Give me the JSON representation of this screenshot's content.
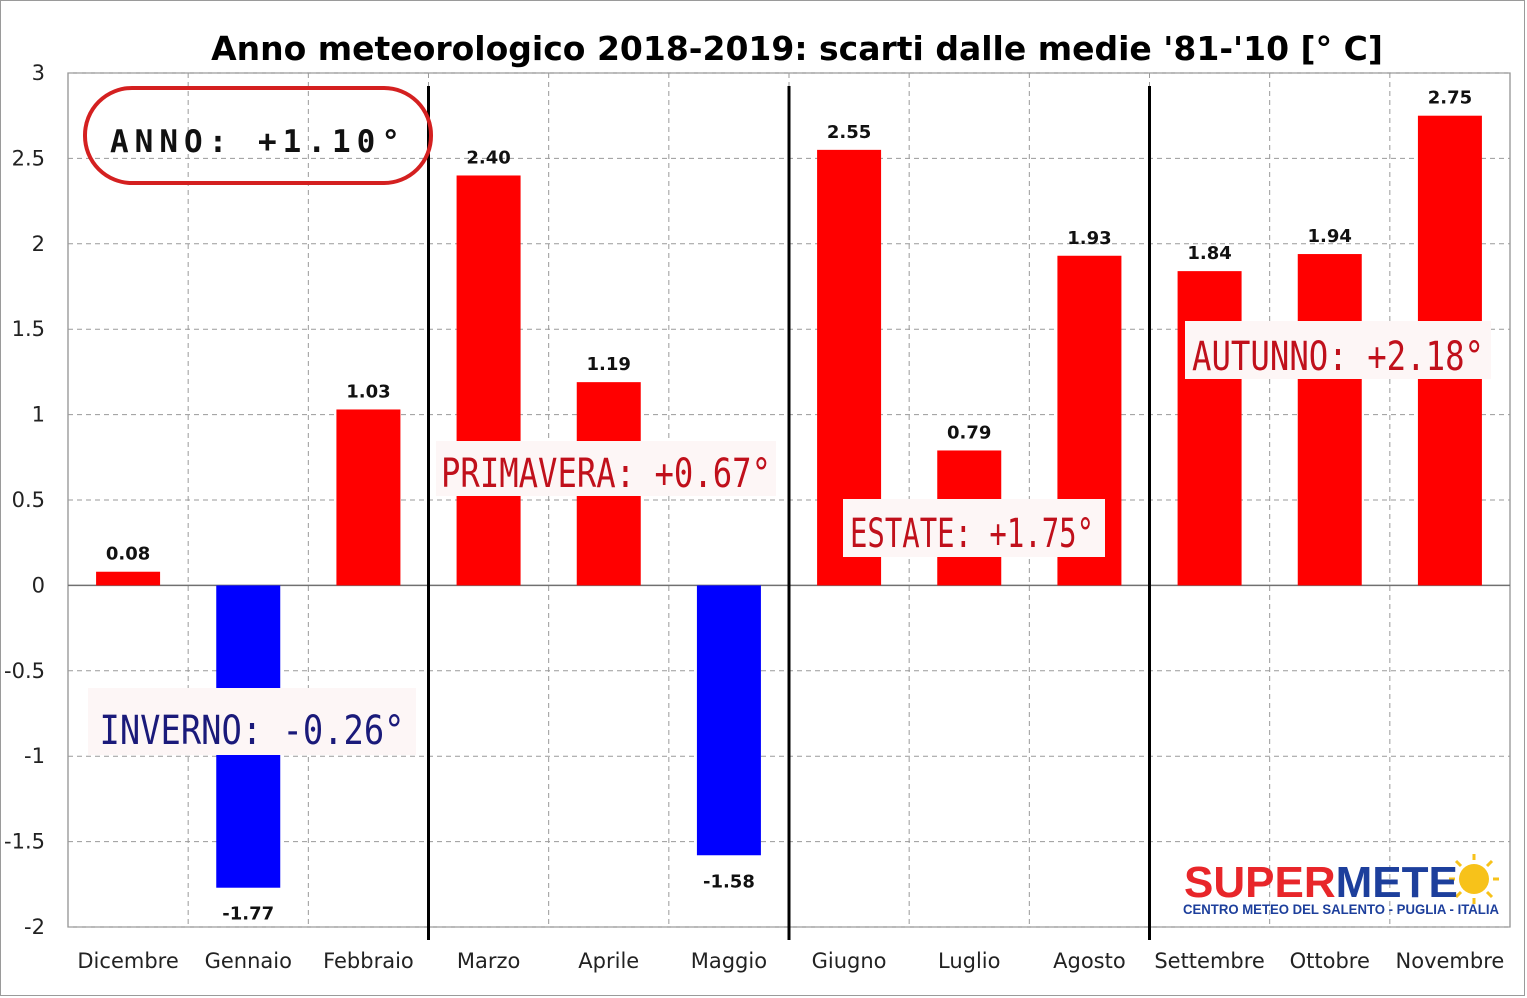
{
  "chart_data": {
    "type": "bar",
    "title": "Anno meteorologico 2018-2019: scarti dalle medie '81-'10 [° C]",
    "categories": [
      "Dicembre",
      "Gennaio",
      "Febbraio",
      "Marzo",
      "Aprile",
      "Maggio",
      "Giugno",
      "Luglio",
      "Agosto",
      "Settembre",
      "Ottobre",
      "Novembre"
    ],
    "values": [
      0.08,
      -1.77,
      1.03,
      2.4,
      1.19,
      -1.58,
      2.55,
      0.79,
      1.93,
      1.84,
      1.94,
      2.75
    ],
    "value_labels": [
      "0.08",
      "-1.77",
      "1.03",
      "2.40",
      "1.19",
      "-1.58",
      "2.55",
      "0.79",
      "1.93",
      "1.84",
      "1.94",
      "2.75"
    ],
    "ylim": [
      -2,
      3
    ],
    "yticks": [
      "3",
      "2.5",
      "2",
      "1.5",
      "1",
      "0.5",
      "0",
      "-0.5",
      "-1",
      "-1.5",
      "-2"
    ],
    "ytick_values": [
      3,
      2.5,
      2,
      1.5,
      1,
      0.5,
      0,
      -0.5,
      -1,
      -1.5,
      -2
    ],
    "grid": true,
    "colors": {
      "positive": "#ff0000",
      "negative": "#0000ff"
    },
    "season_dividers_after": [
      "Febbraio",
      "Maggio",
      "Agosto"
    ],
    "annotations": {
      "anno": "ANNO: +1.10°",
      "inverno": "INVERNO: -0.26°",
      "primavera": "PRIMAVERA: +0.67°",
      "estate": "ESTATE: +1.75°",
      "autunno": "AUTUNNO: +2.18°"
    },
    "annotation_colors": {
      "inverno": "#1a1a7a",
      "primavera": "#c0101b",
      "estate": "#c0101b",
      "autunno": "#c0101b",
      "anno_ring": "#d42020"
    }
  },
  "logo": {
    "super": "SUPER",
    "meteo": "METE",
    "subtitle": "CENTRO METEO DEL SALENTO - PUGLIA - ITALIA",
    "colors": {
      "super": "#e8262a",
      "meteo": "#1d3f9c",
      "sun": "#f7c21a"
    }
  }
}
